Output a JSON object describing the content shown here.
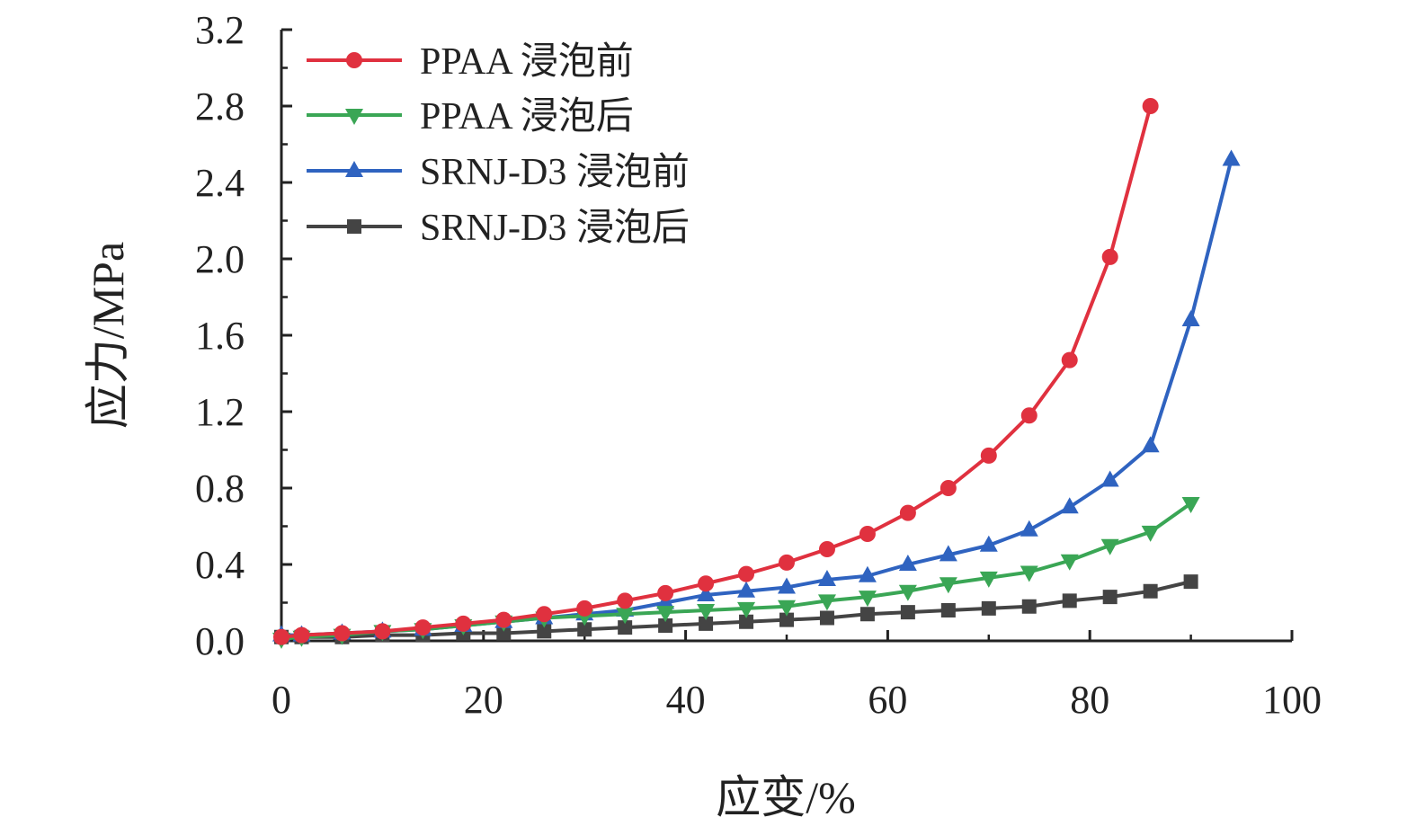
{
  "chart_data": {
    "type": "line",
    "title": "",
    "xlabel": "应变/%",
    "ylabel": "应力/MPa",
    "xlim": [
      0,
      100
    ],
    "ylim": [
      0,
      3.2
    ],
    "xticks": [
      0,
      20,
      40,
      60,
      80,
      100
    ],
    "xtick_labels": [
      "0",
      "20",
      "40",
      "60",
      "80",
      "100"
    ],
    "yticks": [
      0,
      0.4,
      0.8,
      1.2,
      1.6,
      2.0,
      2.4,
      2.8,
      3.2
    ],
    "ytick_labels": [
      "0.0",
      "0.4",
      "0.8",
      "1.2",
      "1.6",
      "2.0",
      "2.4",
      "2.8",
      "3.2"
    ],
    "grid": false,
    "legend_position": "top-left",
    "series": [
      {
        "name": "PPAA 浸泡前",
        "color": "#e0313f",
        "marker": "circle",
        "x": [
          0,
          2,
          6,
          10,
          14,
          18,
          22,
          26,
          30,
          34,
          38,
          42,
          46,
          50,
          54,
          58,
          62,
          66,
          70,
          74,
          78,
          82,
          86
        ],
        "y": [
          0.02,
          0.03,
          0.04,
          0.05,
          0.07,
          0.09,
          0.11,
          0.14,
          0.17,
          0.21,
          0.25,
          0.3,
          0.35,
          0.41,
          0.48,
          0.56,
          0.67,
          0.8,
          0.97,
          1.18,
          1.47,
          2.01,
          2.8
        ]
      },
      {
        "name": "PPAA 浸泡后",
        "color": "#3aa655",
        "marker": "triangle-down",
        "x": [
          0,
          2,
          6,
          10,
          14,
          18,
          22,
          26,
          30,
          34,
          38,
          42,
          46,
          50,
          54,
          58,
          62,
          66,
          70,
          74,
          78,
          82,
          86,
          90
        ],
        "y": [
          0.01,
          0.02,
          0.03,
          0.05,
          0.06,
          0.08,
          0.1,
          0.12,
          0.13,
          0.14,
          0.15,
          0.16,
          0.17,
          0.18,
          0.21,
          0.23,
          0.26,
          0.3,
          0.33,
          0.36,
          0.42,
          0.5,
          0.57,
          0.72
        ]
      },
      {
        "name": "SRNJ-D3 浸泡前",
        "color": "#2f63c0",
        "marker": "triangle-up",
        "x": [
          0,
          2,
          6,
          10,
          14,
          18,
          22,
          26,
          30,
          34,
          38,
          42,
          46,
          50,
          54,
          58,
          62,
          66,
          70,
          74,
          78,
          82,
          86,
          90,
          94
        ],
        "y": [
          0.03,
          0.03,
          0.04,
          0.05,
          0.06,
          0.08,
          0.1,
          0.12,
          0.14,
          0.16,
          0.2,
          0.24,
          0.26,
          0.28,
          0.32,
          0.34,
          0.4,
          0.45,
          0.5,
          0.58,
          0.7,
          0.84,
          1.02,
          1.68,
          2.52
        ]
      },
      {
        "name": "SRNJ-D3 浸泡后",
        "color": "#444444",
        "marker": "square",
        "x": [
          0,
          2,
          6,
          10,
          14,
          18,
          22,
          26,
          30,
          34,
          38,
          42,
          46,
          50,
          54,
          58,
          62,
          66,
          70,
          74,
          78,
          82,
          86,
          90
        ],
        "y": [
          0.02,
          0.02,
          0.02,
          0.03,
          0.03,
          0.04,
          0.04,
          0.05,
          0.06,
          0.07,
          0.08,
          0.09,
          0.1,
          0.11,
          0.12,
          0.14,
          0.15,
          0.16,
          0.17,
          0.18,
          0.21,
          0.23,
          0.26,
          0.31
        ]
      }
    ]
  }
}
